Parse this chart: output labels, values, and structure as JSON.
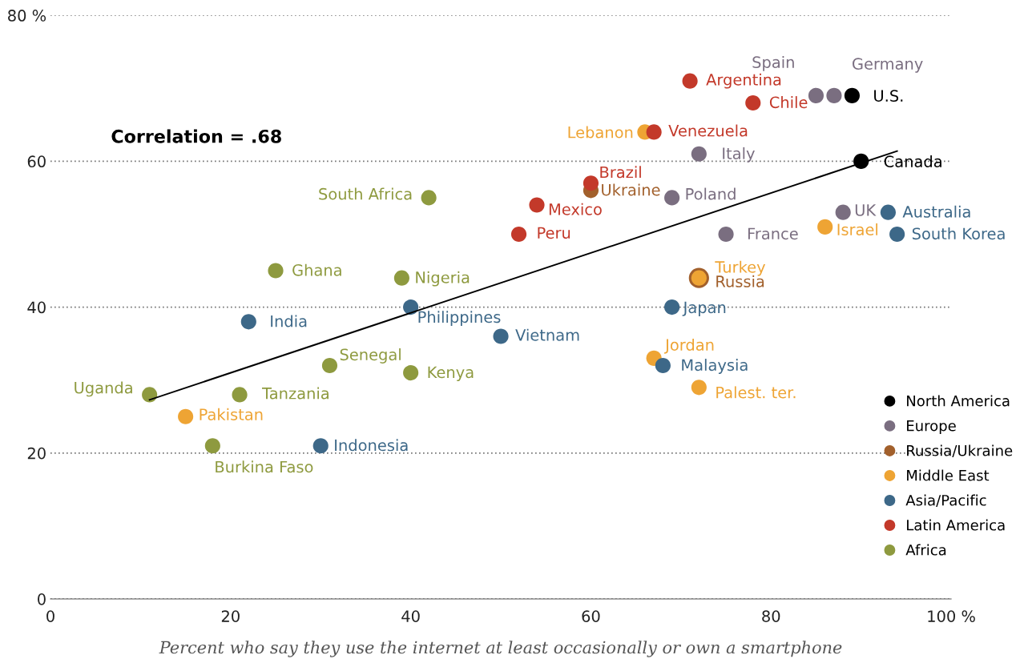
{
  "chart_data": {
    "type": "scatter",
    "xlabel": "Percent who say they use the internet at least occasionally or own a smartphone",
    "xlim": [
      0,
      100
    ],
    "ylim": [
      0,
      80
    ],
    "xticks": [
      0,
      20,
      40,
      60,
      80,
      {
        "value": 100,
        "label": "100 %"
      }
    ],
    "yticks": [
      0,
      20,
      40,
      60,
      {
        "value": 80,
        "label": "80 %"
      }
    ],
    "grid": "y",
    "legend": "bottom right",
    "marker": "circle",
    "series": [
      {
        "name": "North America",
        "color": "#000000",
        "x": [
          89,
          90
        ],
        "values": [
          69,
          60
        ]
      },
      {
        "name": "Europe",
        "color": "#7a6e80",
        "x": [
          85,
          87,
          72,
          69,
          88,
          75
        ],
        "values": [
          69,
          69,
          61,
          55,
          53,
          50
        ]
      },
      {
        "name": "Russia/Ukraine",
        "color": "#a2602c",
        "x": [
          60,
          72
        ],
        "values": [
          56,
          44
        ]
      },
      {
        "name": "Middle East",
        "color": "#eea434",
        "x": [
          66,
          86,
          72,
          67,
          72,
          15
        ],
        "values": [
          64,
          51,
          44,
          33,
          29,
          25
        ]
      },
      {
        "name": "Asia/Pacific",
        "color": "#3d6888",
        "x": [
          93,
          94,
          40,
          69,
          22,
          50,
          68,
          30
        ],
        "values": [
          53,
          50,
          40,
          40,
          38,
          36,
          32,
          21
        ]
      },
      {
        "name": "Latin America",
        "color": "#c3392a",
        "x": [
          71,
          78,
          67,
          60,
          54,
          52
        ],
        "values": [
          71,
          68,
          64,
          57,
          54,
          50
        ]
      },
      {
        "name": "Africa",
        "color": "#8e9a3f",
        "x": [
          42,
          25,
          39,
          31,
          40,
          11,
          21,
          18
        ],
        "values": [
          55,
          45,
          44,
          32,
          31,
          28,
          28,
          21
        ]
      },
      {
        "type": "line",
        "marker": "none",
        "color": "#000000",
        "x": [
          11,
          94
        ],
        "values": [
          27.3,
          61.4
        ]
      }
    ],
    "annotations": [
      "Correlation = .68",
      {
        "text": "Spain",
        "x": 85,
        "y": 69
      },
      {
        "text": "Germany",
        "x": 87,
        "y": 69
      },
      {
        "text": "U.S.",
        "x": 89,
        "y": 69
      },
      {
        "text": "Argentina",
        "x": 71,
        "y": 71
      },
      {
        "text": "Chile",
        "x": 78,
        "y": 68
      },
      {
        "text": "Lebanon",
        "x": 66,
        "y": 64
      },
      {
        "text": "Venezuela",
        "x": 67,
        "y": 64
      },
      {
        "text": "Italy",
        "x": 72,
        "y": 61
      },
      {
        "text": "Canada",
        "x": 90,
        "y": 60
      },
      {
        "text": "Brazil",
        "x": 60,
        "y": 57
      },
      {
        "text": "Ukraine",
        "x": 60,
        "y": 56
      },
      {
        "text": "Poland",
        "x": 69,
        "y": 55
      },
      {
        "text": "South Africa",
        "x": 42,
        "y": 55
      },
      {
        "text": "Mexico",
        "x": 54,
        "y": 54
      },
      {
        "text": "UK",
        "x": 88,
        "y": 53
      },
      {
        "text": "Australia",
        "x": 93,
        "y": 53
      },
      {
        "text": "France",
        "x": 75,
        "y": 50
      },
      {
        "text": "Israel",
        "x": 86,
        "y": 51
      },
      {
        "text": "South Korea",
        "x": 94,
        "y": 50
      },
      {
        "text": "Peru",
        "x": 52,
        "y": 50
      },
      {
        "text": "Ghana",
        "x": 25,
        "y": 45
      },
      {
        "text": "Nigeria",
        "x": 39,
        "y": 44
      },
      {
        "text": "Russia",
        "x": 72,
        "y": 44
      },
      {
        "text": "Turkey",
        "x": 72,
        "y": 44
      },
      {
        "text": "Philippines",
        "x": 40,
        "y": 40
      },
      {
        "text": "Japan",
        "x": 69,
        "y": 40
      },
      {
        "text": "India",
        "x": 22,
        "y": 38
      },
      {
        "text": "Vietnam",
        "x": 50,
        "y": 36
      },
      {
        "text": "Jordan",
        "x": 67,
        "y": 33
      },
      {
        "text": "Senegal",
        "x": 31,
        "y": 32
      },
      {
        "text": "Malaysia",
        "x": 68,
        "y": 32
      },
      {
        "text": "Kenya",
        "x": 40,
        "y": 31
      },
      {
        "text": "Palest. ter.",
        "x": 72,
        "y": 29
      },
      {
        "text": "Uganda",
        "x": 11,
        "y": 28
      },
      {
        "text": "Tanzania",
        "x": 21,
        "y": 28
      },
      {
        "text": "Pakistan",
        "x": 15,
        "y": 25
      },
      {
        "text": "Burkina Faso",
        "x": 18,
        "y": 21
      },
      {
        "text": "Indonesia",
        "x": 30,
        "y": 21
      }
    ]
  }
}
